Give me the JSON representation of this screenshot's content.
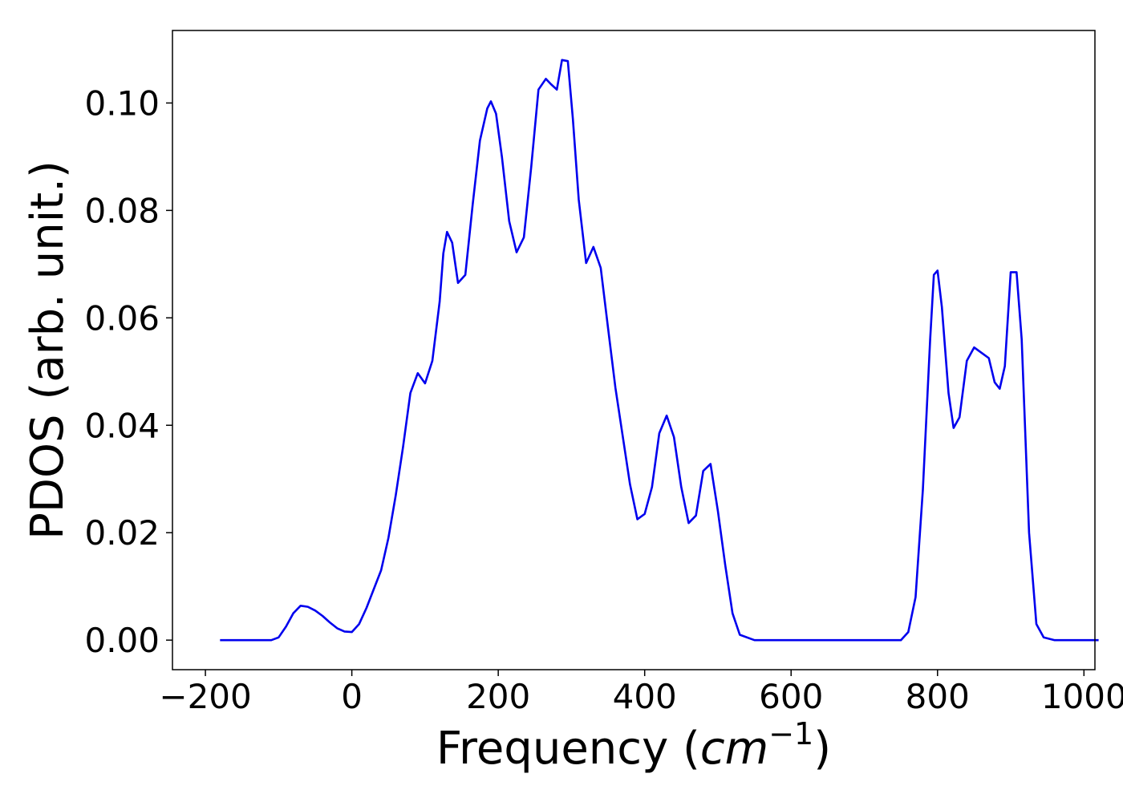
{
  "chart_data": {
    "type": "line",
    "title": "",
    "xlabel": "Frequency (",
    "xlabel_math": "cm",
    "xlabel_sup": "−1",
    "xlabel_close": ")",
    "ylabel": "PDOS (arb. unit.)",
    "xlim": [
      -245,
      1015
    ],
    "ylim": [
      -0.0055,
      0.1135
    ],
    "xticks": [
      -200,
      0,
      200,
      400,
      600,
      800,
      1000
    ],
    "xtick_labels": [
      "−200",
      "0",
      "200",
      "400",
      "600",
      "800",
      "1000"
    ],
    "yticks": [
      0.0,
      0.02,
      0.04,
      0.06,
      0.08,
      0.1
    ],
    "ytick_labels": [
      "0.00",
      "0.02",
      "0.04",
      "0.06",
      "0.08",
      "0.10"
    ],
    "grid": false,
    "series": [
      {
        "color": "#0000ee",
        "x": [
          -180,
          -140,
          -110,
          -100,
          -90,
          -80,
          -70,
          -60,
          -50,
          -40,
          -30,
          -20,
          -10,
          0,
          10,
          20,
          30,
          40,
          50,
          60,
          70,
          80,
          90,
          100,
          110,
          120,
          125,
          130,
          137,
          145,
          155,
          165,
          175,
          185,
          190,
          197,
          205,
          215,
          225,
          235,
          245,
          255,
          265,
          272,
          280,
          287,
          295,
          302,
          310,
          320,
          330,
          340,
          350,
          360,
          370,
          380,
          390,
          400,
          410,
          420,
          430,
          440,
          450,
          460,
          470,
          480,
          490,
          500,
          510,
          520,
          530,
          550,
          600,
          700,
          750,
          760,
          770,
          780,
          790,
          795,
          800,
          806,
          815,
          822,
          830,
          840,
          850,
          860,
          870,
          878,
          885,
          892,
          900,
          908,
          915,
          925,
          935,
          945,
          960,
          1000,
          1020
        ],
        "y": [
          0.0,
          0.0,
          0.0,
          0.0005,
          0.0025,
          0.005,
          0.0064,
          0.0062,
          0.0055,
          0.0045,
          0.0033,
          0.0022,
          0.0016,
          0.0015,
          0.003,
          0.006,
          0.0095,
          0.013,
          0.019,
          0.027,
          0.036,
          0.046,
          0.0497,
          0.0478,
          0.052,
          0.063,
          0.072,
          0.076,
          0.074,
          0.0665,
          0.068,
          0.081,
          0.093,
          0.099,
          0.1003,
          0.098,
          0.09,
          0.078,
          0.0722,
          0.075,
          0.088,
          0.1025,
          0.1045,
          0.1035,
          0.1025,
          0.108,
          0.1078,
          0.097,
          0.082,
          0.0702,
          0.0732,
          0.0693,
          0.058,
          0.047,
          0.038,
          0.029,
          0.0225,
          0.0235,
          0.0285,
          0.0385,
          0.0418,
          0.0378,
          0.0285,
          0.0218,
          0.0232,
          0.0315,
          0.0328,
          0.024,
          0.014,
          0.005,
          0.001,
          0.0,
          0.0,
          0.0,
          0.0,
          0.0015,
          0.008,
          0.028,
          0.056,
          0.068,
          0.0688,
          0.062,
          0.046,
          0.0395,
          0.0415,
          0.052,
          0.0545,
          0.0535,
          0.0525,
          0.048,
          0.0468,
          0.051,
          0.0685,
          0.0685,
          0.056,
          0.02,
          0.003,
          0.0005,
          0.0,
          0.0,
          0.0
        ]
      }
    ]
  }
}
